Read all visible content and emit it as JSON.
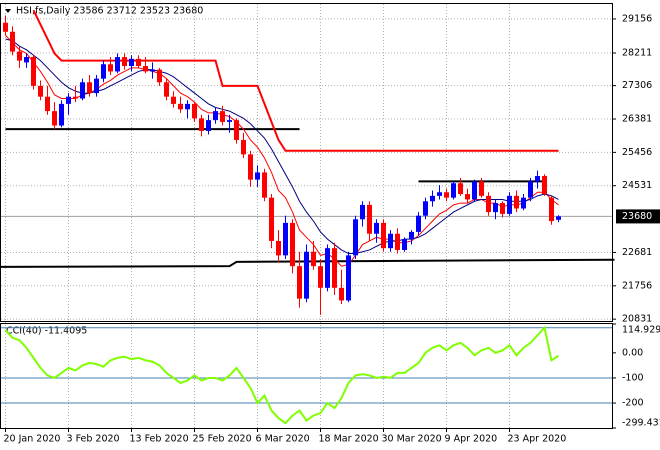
{
  "chart_data": [
    {
      "type": "candlestick",
      "title": "HSI,fs,Daily  23586 23712 23523 23680",
      "categories": [
        "20 Jan 2020",
        null,
        null,
        null,
        null,
        null,
        null,
        null,
        null,
        "3 Feb 2020",
        null,
        null,
        null,
        null,
        null,
        null,
        null,
        null,
        "13 Feb 2020",
        null,
        null,
        null,
        null,
        null,
        null,
        null,
        null,
        "25 Feb 2020",
        null,
        null,
        null,
        null,
        null,
        null,
        null,
        null,
        "6 Mar 2020",
        null,
        null,
        null,
        null,
        null,
        null,
        null,
        null,
        "18 Mar 2020",
        null,
        null,
        null,
        null,
        null,
        null,
        null,
        null,
        "30 Mar 2020",
        null,
        null,
        null,
        null,
        null,
        null,
        null,
        null,
        "9 Apr 2020",
        null,
        null,
        null,
        null,
        null,
        null,
        null,
        null,
        "23 Apr 2020",
        null,
        null,
        null,
        null,
        null,
        null,
        null
      ],
      "open": [
        29050,
        28800,
        28250,
        27950,
        28100,
        27300,
        27000,
        26600,
        26200,
        26800,
        27000,
        26950,
        27400,
        27100,
        27500,
        27900,
        27700,
        28100,
        27850,
        28050,
        27850,
        27700,
        27750,
        27400,
        27000,
        26800,
        26650,
        26800,
        26400,
        26050,
        26350,
        26600,
        26300,
        26350,
        25800,
        25400,
        24700,
        24900,
        24200,
        23000,
        22600,
        23500,
        22300,
        21400,
        22700,
        22300,
        21700,
        22800,
        21700,
        21350,
        22600,
        23600,
        24000,
        23200,
        23500,
        22800,
        23200,
        22750,
        23050,
        23250,
        23700,
        24100,
        24250,
        24350,
        24200,
        24600,
        24300,
        24150,
        24650,
        24250,
        23800,
        24050,
        23750,
        24250,
        23900,
        24200,
        24650,
        24800,
        24200,
        23586
      ],
      "high": [
        29250,
        28950,
        28400,
        28200,
        28150,
        27450,
        27300,
        26850,
        26900,
        27100,
        27300,
        27500,
        27600,
        27600,
        28000,
        28100,
        28200,
        28200,
        28150,
        28150,
        28100,
        27950,
        27800,
        27500,
        27150,
        27000,
        26900,
        26850,
        26500,
        26500,
        26700,
        26750,
        26500,
        26400,
        26000,
        25500,
        25100,
        25000,
        24300,
        23300,
        23700,
        23600,
        22700,
        22900,
        23000,
        22500,
        22900,
        22950,
        22200,
        22700,
        23700,
        24100,
        24100,
        23600,
        23600,
        23300,
        23350,
        23100,
        23300,
        23800,
        24200,
        24400,
        24550,
        24450,
        24650,
        24750,
        24450,
        24700,
        24750,
        24350,
        24150,
        24100,
        24350,
        24400,
        24300,
        24750,
        24950,
        24850,
        24250,
        23712
      ],
      "low": [
        28700,
        28150,
        27800,
        27800,
        27200,
        26900,
        26500,
        26100,
        26150,
        26500,
        26850,
        26900,
        27000,
        27000,
        27400,
        27600,
        27650,
        27750,
        27700,
        27800,
        27650,
        27500,
        27300,
        26900,
        26700,
        26550,
        26400,
        26300,
        25900,
        25950,
        26250,
        26200,
        26000,
        25700,
        25300,
        24500,
        24500,
        24100,
        22800,
        22400,
        22500,
        22100,
        21150,
        21300,
        22200,
        20950,
        21600,
        21500,
        21250,
        21300,
        22500,
        23400,
        23000,
        22950,
        22700,
        22700,
        22650,
        22700,
        22900,
        23150,
        23600,
        23950,
        24150,
        24100,
        24150,
        24250,
        24050,
        24100,
        24200,
        23700,
        23600,
        23650,
        23700,
        23800,
        23850,
        24100,
        24450,
        24250,
        23450,
        23523
      ],
      "close": [
        28800,
        28250,
        28000,
        28100,
        27300,
        27000,
        26600,
        26200,
        26800,
        27000,
        26950,
        27400,
        27100,
        27500,
        27900,
        27700,
        28100,
        27850,
        28050,
        27850,
        27700,
        27750,
        27400,
        27000,
        26800,
        26650,
        26800,
        26400,
        26050,
        26350,
        26600,
        26300,
        26350,
        25800,
        25400,
        24700,
        24900,
        24200,
        23000,
        22600,
        23500,
        22300,
        21400,
        22700,
        22300,
        21700,
        22800,
        21700,
        21350,
        22600,
        23600,
        24000,
        23200,
        23500,
        22800,
        23200,
        22750,
        23050,
        23250,
        23700,
        24100,
        24250,
        24350,
        24200,
        24600,
        24300,
        24150,
        24650,
        24250,
        23800,
        24050,
        23750,
        24250,
        23900,
        24200,
        24650,
        24800,
        24300,
        23550,
        23680
      ],
      "up_color": "#0000ff",
      "down_color": "#ff0000",
      "overlays": [
        {
          "color": "#ff0000",
          "width": 1,
          "values": [
            28700,
            28500,
            28300,
            28200,
            27950,
            27700,
            27400,
            27050,
            26950,
            26950,
            26950,
            27050,
            27100,
            27200,
            27350,
            27450,
            27600,
            27700,
            27800,
            27800,
            27750,
            27700,
            27650,
            27500,
            27300,
            27100,
            27000,
            26850,
            26650,
            26550,
            26550,
            26500,
            26450,
            26300,
            26100,
            25800,
            25600,
            25300,
            24900,
            24400,
            24200,
            23800,
            23300,
            23100,
            22900,
            22600,
            22650,
            22500,
            22300,
            22350,
            22600,
            22900,
            23000,
            23100,
            23050,
            23050,
            22950,
            22950,
            23000,
            23150,
            23350,
            23550,
            23750,
            23850,
            24000,
            24050,
            24050,
            24150,
            24150,
            24050,
            24050,
            23950,
            24000,
            24000,
            24050,
            24200,
            24350,
            24350,
            24150,
            24000
          ]
        },
        {
          "color": "#000080",
          "width": 1,
          "values": [
            28600,
            28550,
            28400,
            28300,
            28150,
            28000,
            27800,
            27600,
            27400,
            27250,
            27150,
            27100,
            27100,
            27150,
            27200,
            27300,
            27400,
            27500,
            27600,
            27700,
            27750,
            27750,
            27700,
            27650,
            27550,
            27400,
            27250,
            27100,
            26950,
            26800,
            26700,
            26650,
            26600,
            26500,
            26400,
            26250,
            26050,
            25850,
            25550,
            25200,
            24850,
            24500,
            24100,
            23800,
            23550,
            23250,
            23050,
            22900,
            22750,
            22650,
            22650,
            22700,
            22750,
            22850,
            22950,
            23000,
            23000,
            23050,
            23050,
            23100,
            23200,
            23350,
            23500,
            23650,
            23800,
            23900,
            24000,
            24100,
            24150,
            24150,
            24150,
            24150,
            24100,
            24100,
            24100,
            24150,
            24250,
            24300,
            24250,
            24150
          ]
        },
        {
          "color": "#ff0000",
          "width": 2,
          "values": [
            null,
            null,
            null,
            null,
            29400,
            29000,
            28600,
            28200,
            28000,
            28000,
            28000,
            28000,
            28000,
            28000,
            28000,
            28000,
            28000,
            28000,
            28000,
            28000,
            28000,
            28000,
            28000,
            28000,
            28000,
            28000,
            28000,
            28000,
            28000,
            28000,
            28000,
            27300,
            27300,
            27300,
            27300,
            27300,
            27300,
            26800,
            26300,
            25800,
            25500,
            25500,
            25500,
            25500,
            25500,
            25500,
            25500,
            25500,
            25500,
            25500,
            25500,
            25500,
            25500,
            25500,
            25500,
            25500,
            25500,
            25500,
            25500,
            25500,
            25500,
            25500,
            25500,
            25500,
            25500,
            25500,
            25500,
            25500,
            25500,
            25500,
            25500,
            25500,
            25500,
            25500,
            25500,
            25500,
            25500,
            25500,
            25500,
            25500
          ]
        }
      ],
      "levels": [
        {
          "x": [
            0,
            42
          ],
          "y": [
            26100,
            26100
          ]
        },
        {
          "x": [
            -1,
            32,
            33,
            87
          ],
          "y": [
            22280,
            22300,
            22420,
            22480
          ]
        },
        {
          "x": [
            59,
            77
          ],
          "y": [
            24650,
            24650
          ]
        }
      ],
      "ylim": [
        20780,
        29570
      ],
      "yticks": [
        29156,
        28211,
        27306,
        26381,
        25456,
        24531,
        22681,
        21756,
        20831
      ],
      "grid": true
    },
    {
      "type": "line",
      "title": "CCI(40) -11.4095",
      "color": "#7fff00",
      "values": [
        90,
        60,
        50,
        20,
        -20,
        -60,
        -90,
        -100,
        -80,
        -60,
        -70,
        -50,
        -40,
        -45,
        -55,
        -30,
        -20,
        -15,
        -25,
        -20,
        -30,
        -35,
        -50,
        -80,
        -100,
        -120,
        -110,
        -90,
        -110,
        -100,
        -100,
        -110,
        -90,
        -60,
        -100,
        -140,
        -200,
        -170,
        -230,
        -260,
        -280,
        -250,
        -230,
        -270,
        -250,
        -240,
        -200,
        -220,
        -180,
        -120,
        -90,
        -85,
        -90,
        -100,
        -95,
        -100,
        -80,
        -80,
        -60,
        -40,
        0,
        20,
        30,
        10,
        30,
        40,
        20,
        -10,
        10,
        20,
        0,
        10,
        30,
        -10,
        20,
        40,
        70,
        100,
        -30,
        -11.4095
      ],
      "levels": [
        100,
        -100,
        -200
      ],
      "level_color": "#4682b4",
      "ylim": [
        -299.431,
        114.9297
      ],
      "yticks": [
        114.9297,
        {
          "value": 0,
          "label": "0.00"
        },
        -100,
        -200,
        -299.431
      ]
    }
  ]
}
